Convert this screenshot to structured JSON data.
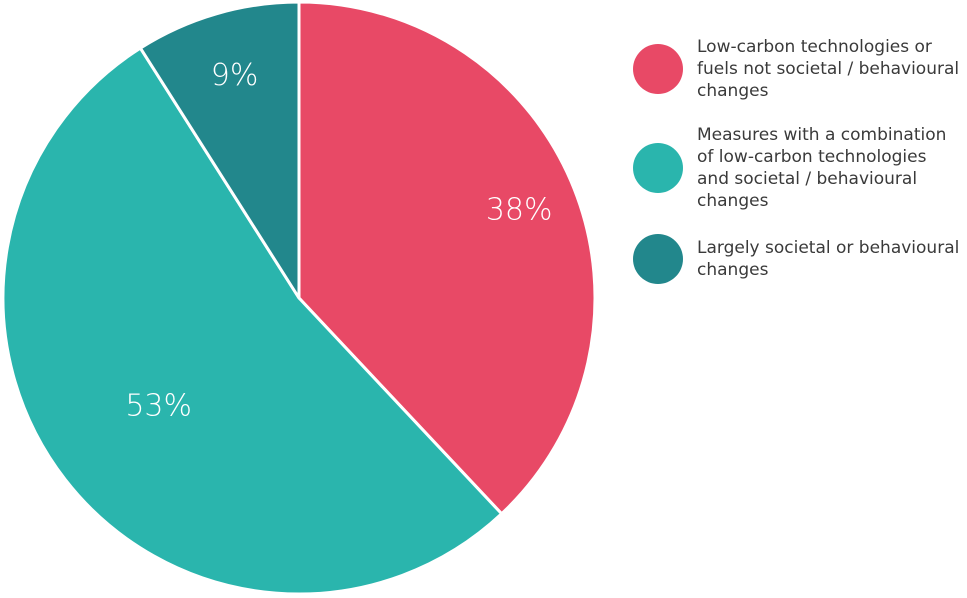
{
  "chart_data": {
    "type": "pie",
    "title": "",
    "slices": [
      {
        "label": "Low-carbon technologies or fuels not societal / behavioural changes",
        "value": 38,
        "value_label": "38%",
        "color": "#e84966"
      },
      {
        "label": "Measures with a combination of low-carbon technologies and societal / behavioural changes",
        "value": 53,
        "value_label": "53%",
        "color": "#2ab5ad"
      },
      {
        "label": "Largely societal or behavioural changes",
        "value": 9,
        "value_label": "9%",
        "color": "#22878c"
      }
    ],
    "legend_position": "right",
    "start_angle": "12 o'clock, clockwise"
  }
}
